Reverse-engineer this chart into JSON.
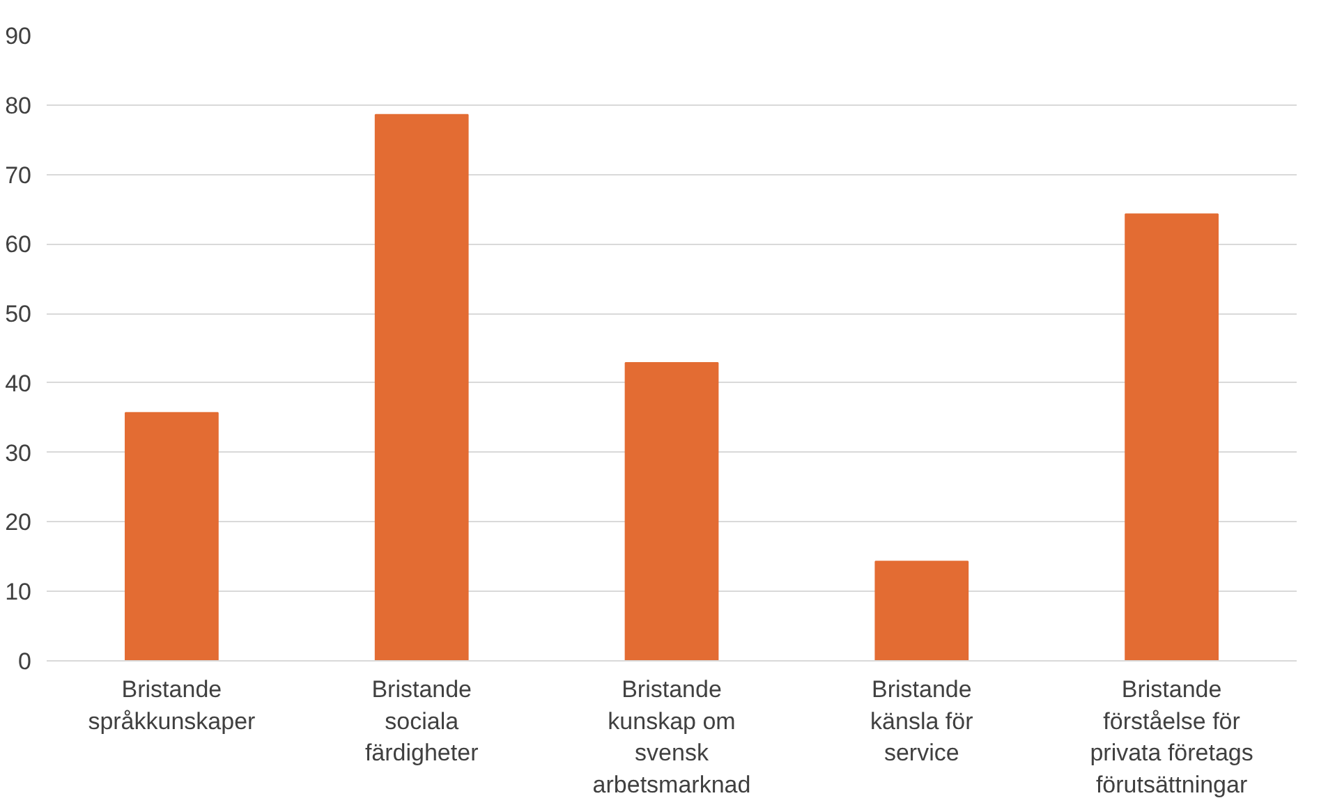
{
  "chart_data": {
    "type": "bar",
    "categories": [
      "Bristande språkkunskaper",
      "Bristande sociala färdigheter",
      "Bristande kunskap om svensk arbetsmarknad",
      "Bristande känsla för service",
      "Bristande förståelse för privata företags förutsättningar"
    ],
    "values": [
      35.7,
      78.6,
      42.9,
      14.3,
      64.3
    ],
    "color": "#e36c33",
    "ylim": [
      0,
      90
    ],
    "yticks": [
      0,
      10,
      20,
      30,
      40,
      50,
      60,
      70,
      80,
      90
    ],
    "grid": "y"
  }
}
